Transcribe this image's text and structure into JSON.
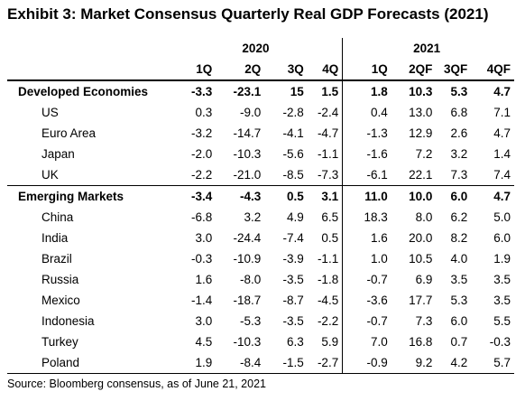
{
  "title": "Exhibit 3: Market Consensus Quarterly Real GDP Forecasts (2021)",
  "years": [
    "2020",
    "2021"
  ],
  "quarters": [
    "1Q",
    "2Q",
    "3Q",
    "4Q",
    "1Q",
    "2QF",
    "3QF",
    "4QF"
  ],
  "rows": [
    {
      "name": "Developed Economies",
      "group": true,
      "v": [
        "-3.3",
        "-23.1",
        "15",
        "1.5",
        "1.8",
        "10.3",
        "5.3",
        "4.7"
      ]
    },
    {
      "name": "US",
      "v": [
        "0.3",
        "-9.0",
        "-2.8",
        "-2.4",
        "0.4",
        "13.0",
        "6.8",
        "7.1"
      ]
    },
    {
      "name": "Euro Area",
      "v": [
        "-3.2",
        "-14.7",
        "-4.1",
        "-4.7",
        "-1.3",
        "12.9",
        "2.6",
        "4.7"
      ]
    },
    {
      "name": "Japan",
      "v": [
        "-2.0",
        "-10.3",
        "-5.6",
        "-1.1",
        "-1.6",
        "7.2",
        "3.2",
        "1.4"
      ]
    },
    {
      "name": "UK",
      "v": [
        "-2.2",
        "-21.0",
        "-8.5",
        "-7.3",
        "-6.1",
        "22.1",
        "7.3",
        "7.4"
      ]
    },
    {
      "name": "Emerging Markets",
      "group": true,
      "v": [
        "-3.4",
        "-4.3",
        "0.5",
        "3.1",
        "11.0",
        "10.0",
        "6.0",
        "4.7"
      ]
    },
    {
      "name": "China",
      "v": [
        "-6.8",
        "3.2",
        "4.9",
        "6.5",
        "18.3",
        "8.0",
        "6.2",
        "5.0"
      ]
    },
    {
      "name": "India",
      "v": [
        "3.0",
        "-24.4",
        "-7.4",
        "0.5",
        "1.6",
        "20.0",
        "8.2",
        "6.0"
      ]
    },
    {
      "name": "Brazil",
      "v": [
        "-0.3",
        "-10.9",
        "-3.9",
        "-1.1",
        "1.0",
        "10.5",
        "4.0",
        "1.9"
      ]
    },
    {
      "name": "Russia",
      "v": [
        "1.6",
        "-8.0",
        "-3.5",
        "-1.8",
        "-0.7",
        "6.9",
        "3.5",
        "3.5"
      ]
    },
    {
      "name": "Mexico",
      "v": [
        "-1.4",
        "-18.7",
        "-8.7",
        "-4.5",
        "-3.6",
        "17.7",
        "5.3",
        "3.5"
      ]
    },
    {
      "name": "Indonesia",
      "v": [
        "3.0",
        "-5.3",
        "-3.5",
        "-2.2",
        "-0.7",
        "7.3",
        "6.0",
        "5.5"
      ]
    },
    {
      "name": "Turkey",
      "v": [
        "4.5",
        "-10.3",
        "6.3",
        "5.9",
        "7.0",
        "16.8",
        "0.7",
        "-0.3"
      ]
    },
    {
      "name": "Poland",
      "v": [
        "1.9",
        "-8.4",
        "-1.5",
        "-2.7",
        "-0.9",
        "9.2",
        "4.2",
        "5.7"
      ]
    }
  ],
  "source": "Source: Bloomberg consensus, as of June 21, 2021"
}
